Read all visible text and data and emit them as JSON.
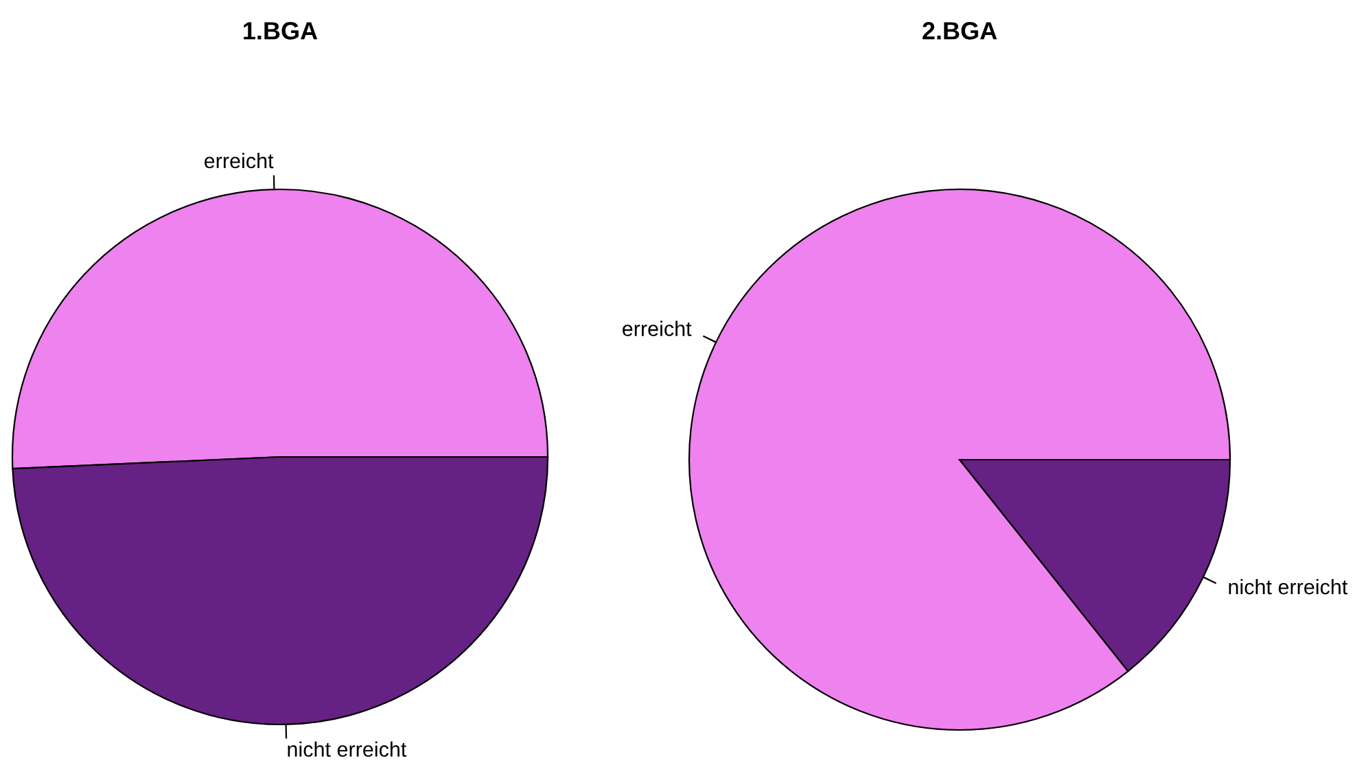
{
  "chart_data": [
    {
      "type": "pie",
      "title": "1.BGA",
      "categories": [
        "erreicht",
        "nicht erreicht"
      ],
      "values": [
        50.7,
        49.3
      ],
      "colors": [
        "#ee82ee",
        "#662184"
      ]
    },
    {
      "type": "pie",
      "title": "2.BGA",
      "categories": [
        "erreicht",
        "nicht erreicht"
      ],
      "values": [
        85.7,
        14.3
      ],
      "colors": [
        "#ee82ee",
        "#662184"
      ]
    }
  ]
}
